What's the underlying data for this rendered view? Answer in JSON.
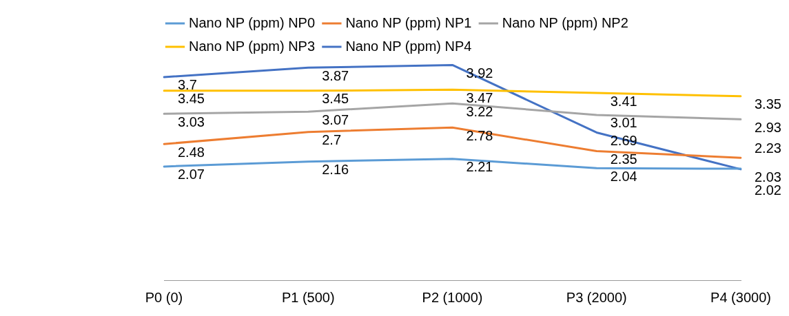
{
  "chart_data": {
    "type": "line",
    "categories": [
      "P0 (0)",
      "P1 (500)",
      "P2 (1000)",
      "P3 (2000)",
      "P4 (3000)"
    ],
    "series": [
      {
        "name": "Nano NP (ppm) NP0",
        "color": "#5b9bd5",
        "values": [
          2.07,
          2.16,
          2.21,
          2.04,
          2.03
        ]
      },
      {
        "name": "Nano NP (ppm) NP1",
        "color": "#ed7d31",
        "values": [
          2.48,
          2.7,
          2.78,
          2.35,
          2.23
        ]
      },
      {
        "name": "Nano NP (ppm) NP2",
        "color": "#a5a5a5",
        "values": [
          3.03,
          3.07,
          3.22,
          3.01,
          2.93
        ]
      },
      {
        "name": "Nano NP (ppm) NP3",
        "color": "#ffc000",
        "values": [
          3.45,
          3.45,
          3.47,
          3.41,
          3.35
        ]
      },
      {
        "name": "Nano NP (ppm) NP4",
        "color": "#4472c4",
        "values": [
          3.7,
          3.87,
          3.92,
          2.69,
          2.02
        ]
      }
    ],
    "tick_labels": "x",
    "grid": false,
    "legend": "top",
    "marker": "none",
    "line_style": "solid",
    "data_labels": true
  }
}
